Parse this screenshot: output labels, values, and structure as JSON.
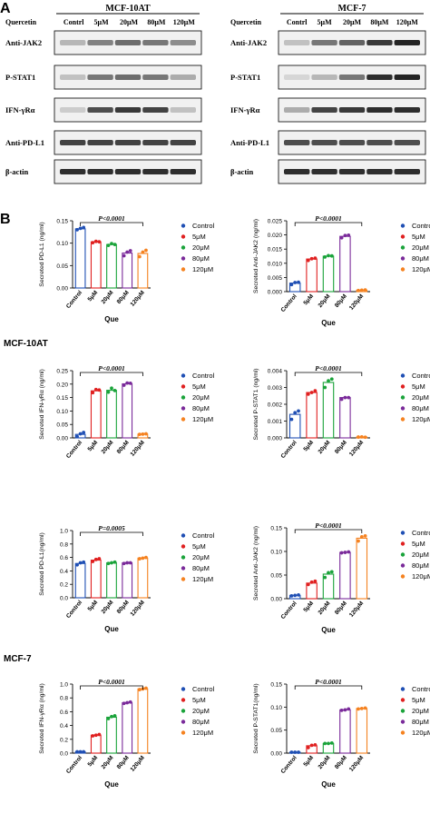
{
  "panel_a": {
    "label": "A",
    "blots": [
      {
        "title": "MCF-10AT",
        "quercetin_label": "Quercetin",
        "lanes": [
          "Contrl",
          "5μM",
          "20μM",
          "80μM",
          "120μM"
        ],
        "rows": [
          {
            "label": "Anti-JAK2",
            "intensity": [
              0.25,
              0.5,
              0.6,
              0.55,
              0.45
            ]
          },
          {
            "label": "P-STAT1",
            "intensity": [
              0.2,
              0.55,
              0.6,
              0.55,
              0.3
            ]
          },
          {
            "label": "IFN-γRα",
            "intensity": [
              0.15,
              0.75,
              0.85,
              0.8,
              0.2
            ]
          },
          {
            "label": "Anti-PD-L1",
            "intensity": [
              0.8,
              0.8,
              0.8,
              0.8,
              0.8
            ]
          },
          {
            "label": "β-actin",
            "intensity": [
              0.9,
              0.9,
              0.9,
              0.9,
              0.9
            ]
          }
        ]
      },
      {
        "title": "MCF-7",
        "quercetin_label": "Quercetin",
        "lanes": [
          "Contrl",
          "5μM",
          "20μM",
          "80μM",
          "120μM"
        ],
        "rows": [
          {
            "label": "Anti-JAK2",
            "intensity": [
              0.2,
              0.55,
              0.65,
              0.85,
              0.95
            ]
          },
          {
            "label": "P-STAT1",
            "intensity": [
              0.1,
              0.25,
              0.55,
              0.9,
              0.95
            ]
          },
          {
            "label": "IFN-γRα",
            "intensity": [
              0.3,
              0.8,
              0.85,
              0.9,
              0.9
            ]
          },
          {
            "label": "Anti-PD-L1",
            "intensity": [
              0.75,
              0.75,
              0.75,
              0.75,
              0.75
            ]
          },
          {
            "label": "β-actin",
            "intensity": [
              0.9,
              0.9,
              0.9,
              0.9,
              0.9
            ]
          }
        ]
      }
    ]
  },
  "panel_b": {
    "label": "B",
    "cell_labels": [
      "MCF-10AT",
      "MCF-7"
    ],
    "group_colors": [
      "#1f4fb4",
      "#e02020",
      "#1aa33a",
      "#7a2a9a",
      "#f58220"
    ],
    "legend": [
      "Control",
      "5μM",
      "20μM",
      "80μM",
      "120μM"
    ]
  },
  "chart_data": [
    {
      "type": "bar",
      "cell": "MCF-10AT",
      "categories": [
        "Control",
        "5μM",
        "20μM",
        "80μM",
        "120μM"
      ],
      "values": [
        0.132,
        0.103,
        0.097,
        0.078,
        0.077
      ],
      "points": [
        [
          0.13,
          0.133,
          0.135
        ],
        [
          0.101,
          0.104,
          0.103
        ],
        [
          0.095,
          0.099,
          0.097
        ],
        [
          0.072,
          0.08,
          0.083
        ],
        [
          0.07,
          0.08,
          0.084
        ]
      ],
      "ylabel": "Secreted PD-L1 (ng/ml)",
      "xlabel": "Que",
      "ylim": [
        0,
        0.15
      ],
      "yticks": [
        "0.00",
        "0.05",
        "0.10",
        "0.15"
      ],
      "annotation": "P<0.0001",
      "annotation_span": [
        0,
        4
      ]
    },
    {
      "type": "bar",
      "cell": "MCF-10AT",
      "categories": [
        "Control",
        "5μM",
        "20μM",
        "80μM",
        "120μM"
      ],
      "values": [
        0.003,
        0.0115,
        0.0125,
        0.0195,
        0.0005
      ],
      "points": [
        [
          0.0025,
          0.0032,
          0.0033
        ],
        [
          0.011,
          0.0116,
          0.0118
        ],
        [
          0.0122,
          0.0127,
          0.0126
        ],
        [
          0.019,
          0.0198,
          0.0199
        ],
        [
          0.0004,
          0.0005,
          0.0006
        ]
      ],
      "ylabel": "Secreted Anti-JAK2 (ng/ml)",
      "xlabel": "Que",
      "ylim": [
        0,
        0.025
      ],
      "yticks": [
        "0.000",
        "0.005",
        "0.010",
        "0.015",
        "0.020",
        "0.025"
      ],
      "annotation": "P<0.0001",
      "annotation_span": [
        0,
        4
      ]
    },
    {
      "type": "bar",
      "cell": "MCF-10AT",
      "categories": [
        "Control",
        "5μM",
        "20μM",
        "80μM",
        "120μM"
      ],
      "values": [
        0.013,
        0.175,
        0.177,
        0.201,
        0.014
      ],
      "points": [
        [
          0.005,
          0.015,
          0.02
        ],
        [
          0.168,
          0.18,
          0.178
        ],
        [
          0.17,
          0.185,
          0.176
        ],
        [
          0.196,
          0.204,
          0.203
        ],
        [
          0.013,
          0.014,
          0.015
        ]
      ],
      "ylabel": "Secreted IFN-γRα (ng/ml)",
      "xlabel": "",
      "ylim": [
        0,
        0.25
      ],
      "yticks": [
        "0.00",
        "0.05",
        "0.10",
        "0.15",
        "0.20",
        "0.25"
      ],
      "annotation": "P<0.0001",
      "annotation_span": [
        0,
        4
      ]
    },
    {
      "type": "bar",
      "cell": "MCF-10AT",
      "categories": [
        "Control",
        "5μM",
        "20μM",
        "80μM",
        "120μM"
      ],
      "values": [
        0.0014,
        0.0027,
        0.0033,
        0.0024,
        5e-05
      ],
      "points": [
        [
          0.0011,
          0.0015,
          0.0016
        ],
        [
          0.0026,
          0.0027,
          0.0028
        ],
        [
          0.003,
          0.0034,
          0.0035
        ],
        [
          0.0023,
          0.0024,
          0.0024
        ],
        [
          5e-05,
          6e-05,
          4e-05
        ]
      ],
      "ylabel": "Secreted P-STAT1 (ng/ml)",
      "xlabel": "",
      "ylim": [
        0,
        0.004
      ],
      "yticks": [
        "0.000",
        "0.001",
        "0.002",
        "0.003",
        "0.004"
      ],
      "annotation": "P<0.0001",
      "annotation_span": [
        0,
        4
      ]
    },
    {
      "type": "bar",
      "cell": "MCF-7",
      "categories": [
        "Control",
        "5μM",
        "20μM",
        "80μM",
        "120μM"
      ],
      "values": [
        0.51,
        0.56,
        0.52,
        0.52,
        0.59
      ],
      "points": [
        [
          0.49,
          0.52,
          0.53
        ],
        [
          0.54,
          0.57,
          0.58
        ],
        [
          0.51,
          0.52,
          0.53
        ],
        [
          0.51,
          0.52,
          0.52
        ],
        [
          0.58,
          0.59,
          0.6
        ]
      ],
      "ylabel": "Secreted PD-L1(ng/ml)",
      "xlabel": "Que",
      "ylim": [
        0,
        1.0
      ],
      "yticks": [
        "0.0",
        "0.2",
        "0.4",
        "0.6",
        "0.8",
        "1.0"
      ],
      "annotation": "P=0.0005",
      "annotation_span": [
        0,
        4
      ]
    },
    {
      "type": "bar",
      "cell": "MCF-7",
      "categories": [
        "Control",
        "5μM",
        "20μM",
        "80μM",
        "120μM"
      ],
      "values": [
        0.007,
        0.033,
        0.052,
        0.098,
        0.128
      ],
      "points": [
        [
          0.006,
          0.007,
          0.008
        ],
        [
          0.03,
          0.035,
          0.037
        ],
        [
          0.045,
          0.055,
          0.057
        ],
        [
          0.097,
          0.098,
          0.099
        ],
        [
          0.122,
          0.131,
          0.133
        ]
      ],
      "ylabel": "Secreted Anti-JAK2 (ng/ml)",
      "xlabel": "Que",
      "ylim": [
        0,
        0.15
      ],
      "yticks": [
        "0.00",
        "0.05",
        "0.10",
        "0.15"
      ],
      "annotation": "P<0.0001",
      "annotation_span": [
        0,
        4
      ]
    },
    {
      "type": "bar",
      "cell": "MCF-7",
      "categories": [
        "Control",
        "5μM",
        "20μM",
        "80μM",
        "120μM"
      ],
      "values": [
        0.02,
        0.26,
        0.52,
        0.73,
        0.93
      ],
      "points": [
        [
          0.02,
          0.02,
          0.02
        ],
        [
          0.25,
          0.26,
          0.27
        ],
        [
          0.5,
          0.53,
          0.54
        ],
        [
          0.72,
          0.73,
          0.74
        ],
        [
          0.92,
          0.93,
          0.94
        ]
      ],
      "ylabel": "Secreted IFN-γRα (ng/ml)",
      "xlabel": "Que",
      "ylim": [
        0,
        1.0
      ],
      "yticks": [
        "0.0",
        "0.2",
        "0.4",
        "0.6",
        "0.8",
        "1.0"
      ],
      "annotation": "P<0.0001",
      "annotation_span": [
        0,
        4
      ]
    },
    {
      "type": "bar",
      "cell": "MCF-7",
      "categories": [
        "Control",
        "5μM",
        "20μM",
        "80μM",
        "120μM"
      ],
      "values": [
        0.002,
        0.016,
        0.021,
        0.094,
        0.097
      ],
      "points": [
        [
          0.002,
          0.002,
          0.002
        ],
        [
          0.012,
          0.017,
          0.018
        ],
        [
          0.021,
          0.021,
          0.022
        ],
        [
          0.093,
          0.094,
          0.096
        ],
        [
          0.096,
          0.097,
          0.098
        ]
      ],
      "ylabel": "Secreted P-STAT1(ng/ml)",
      "xlabel": "Que",
      "ylim": [
        0,
        0.15
      ],
      "yticks": [
        "0.00",
        "0.05",
        "0.10",
        "0.15"
      ],
      "annotation": "P<0.0001",
      "annotation_span": [
        0,
        4
      ]
    }
  ]
}
